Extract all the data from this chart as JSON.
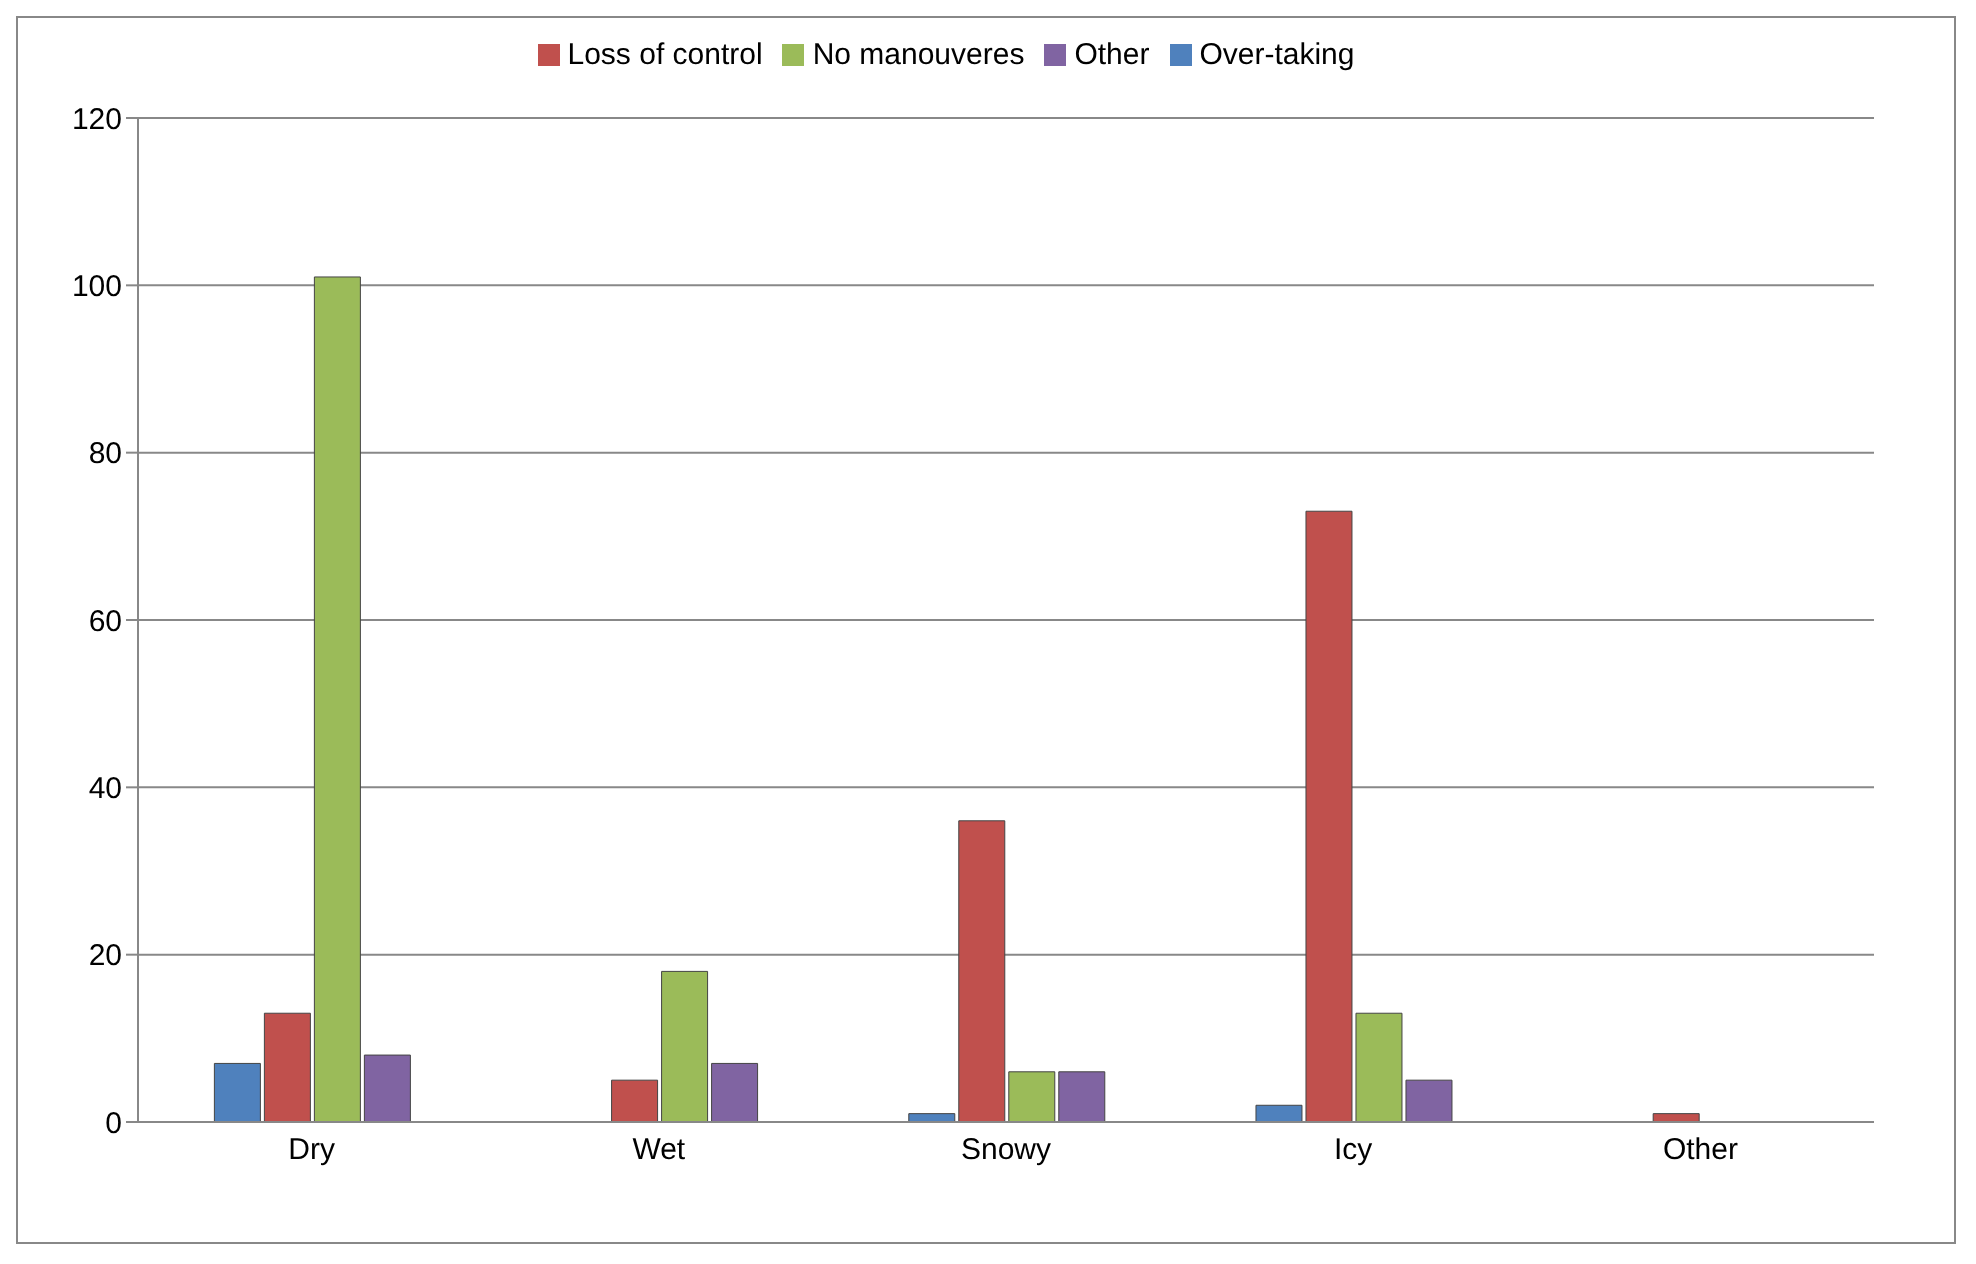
{
  "chart_data": {
    "type": "bar",
    "categories": [
      "Dry",
      "Wet",
      "Snowy",
      "Icy",
      "Other"
    ],
    "series": [
      {
        "name": "Over-taking",
        "color": "#4f81bd",
        "values": [
          7,
          0,
          1,
          2,
          0
        ]
      },
      {
        "name": "Loss of control",
        "color": "#c0504d",
        "values": [
          13,
          5,
          36,
          73,
          1
        ]
      },
      {
        "name": "No manouveres",
        "color": "#9bbb59",
        "values": [
          101,
          18,
          6,
          13,
          0
        ]
      },
      {
        "name": "Other",
        "color": "#8064a2",
        "values": [
          8,
          7,
          6,
          5,
          0
        ]
      }
    ],
    "ylim": [
      0,
      120
    ],
    "yticks": [
      0,
      20,
      40,
      60,
      80,
      100,
      120
    ],
    "grid": "y",
    "legend": "top"
  }
}
